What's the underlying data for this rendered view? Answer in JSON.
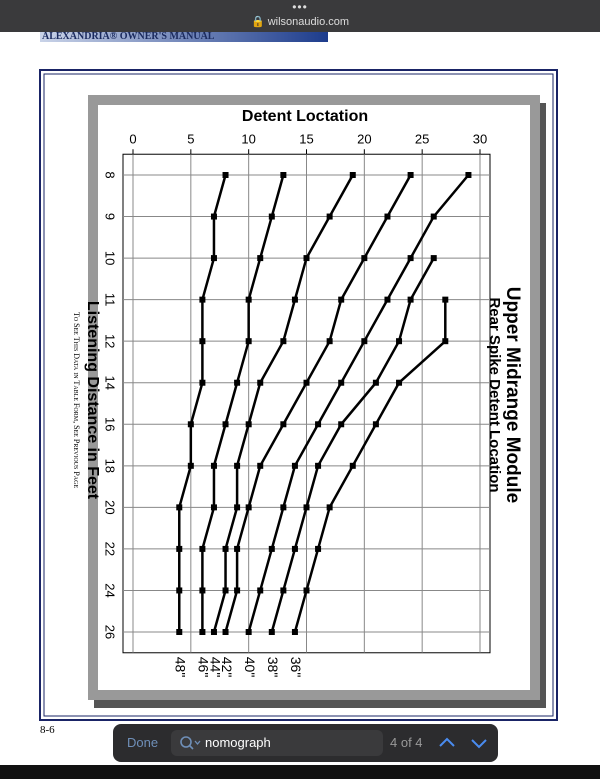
{
  "browser": {
    "url": "wilsonaudio.com"
  },
  "document": {
    "header": "ALEXANDRIA® OWNER'S MANUAL",
    "note": "To See This Data in Table Form, See Previous Page",
    "page_number": "8-6"
  },
  "find_bar": {
    "done": "Done",
    "query": "nomograph",
    "count": "4 of 4"
  },
  "chart_data": {
    "type": "line",
    "title": "Upper Midrange Module",
    "subtitle": "Rear Spike Detent Location",
    "x_label": "Listening Distance in Feet",
    "y_label": "Detent Loctation",
    "categories": [
      "8",
      "9",
      "10",
      "11",
      "12",
      "14",
      "16",
      "18",
      "20",
      "22",
      "24",
      "26"
    ],
    "ylim": [
      0,
      30
    ],
    "yticks": [
      0,
      5,
      10,
      15,
      20,
      25,
      30
    ],
    "grid": true,
    "color": "#000000",
    "series": [
      {
        "name": "36\"",
        "color": "#000000",
        "values": [
          null,
          null,
          null,
          27,
          27,
          23,
          21,
          19,
          17,
          16,
          15,
          14
        ]
      },
      {
        "name": "38\"",
        "color": "#000000",
        "values": [
          null,
          null,
          26,
          24,
          23,
          21,
          18,
          16,
          15,
          14,
          13,
          12
        ]
      },
      {
        "name": "40\"",
        "color": "#000000",
        "values": [
          29,
          26,
          24,
          22,
          20,
          18,
          16,
          14,
          13,
          12,
          11,
          10
        ]
      },
      {
        "name": "42\"",
        "color": "#000000",
        "values": [
          24,
          22,
          20,
          18,
          17,
          15,
          13,
          11,
          10,
          9,
          9,
          8
        ]
      },
      {
        "name": "44\"",
        "color": "#000000",
        "values": [
          19,
          17,
          15,
          14,
          13,
          11,
          10,
          9,
          9,
          8,
          8,
          7
        ]
      },
      {
        "name": "46\"",
        "color": "#000000",
        "values": [
          13,
          12,
          11,
          10,
          10,
          9,
          8,
          7,
          7,
          6,
          6,
          6
        ]
      },
      {
        "name": "48\"",
        "color": "#000000",
        "values": [
          8,
          7,
          7,
          6,
          6,
          6,
          5,
          5,
          4,
          4,
          4,
          4
        ]
      }
    ]
  }
}
